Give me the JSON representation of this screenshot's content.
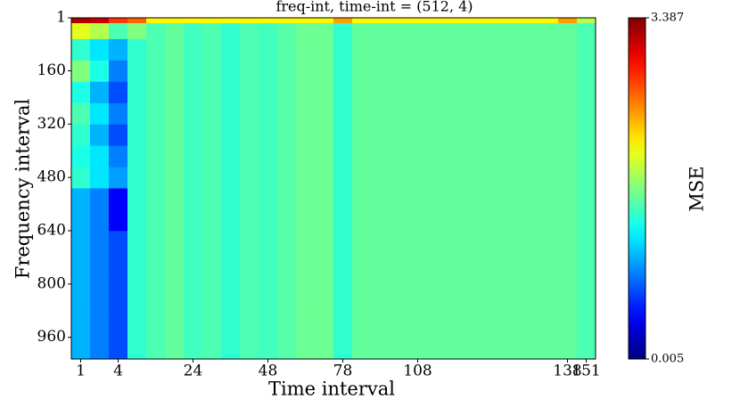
{
  "chart_data": {
    "type": "heatmap",
    "title": "freq-int, time-int = (512, 4)",
    "x_label": "Time interval",
    "y_label": "Frequency interval",
    "colorbar_label": "MSE",
    "colormap": "jet",
    "categories": [
      "1",
      null,
      "4",
      null,
      null,
      null,
      "24",
      null,
      null,
      null,
      "48",
      null,
      null,
      null,
      "78",
      null,
      null,
      null,
      "108",
      null,
      null,
      null,
      null,
      null,
      null,
      null,
      "138",
      "151"
    ],
    "y_bins": [
      1,
      17,
      65,
      129,
      193,
      257,
      321,
      385,
      449,
      513,
      641,
      769,
      897,
      1025
    ],
    "ylim": [
      1,
      1025
    ],
    "yticks": [
      1,
      160,
      320,
      480,
      640,
      800,
      960
    ],
    "y_reversed": true,
    "clim": [
      0.005,
      3.387
    ],
    "cticks": [
      0.005,
      3.387
    ],
    "z": [
      [
        3.22,
        3.15,
        2.78,
        2.64,
        2.14,
        2.14,
        2.14,
        2.14,
        2.14,
        2.14,
        2.14,
        2.14,
        2.14,
        2.14,
        2.44,
        2.14,
        2.14,
        2.14,
        2.14,
        2.14,
        2.14,
        2.14,
        2.14,
        2.14,
        2.14,
        2.14,
        2.44,
        1.86
      ],
      [
        2.03,
        1.87,
        1.53,
        1.7,
        1.53,
        1.6,
        1.49,
        1.53,
        1.43,
        1.53,
        1.49,
        1.56,
        1.63,
        1.63,
        1.43,
        1.6,
        1.6,
        1.6,
        1.6,
        1.6,
        1.6,
        1.6,
        1.6,
        1.6,
        1.6,
        1.6,
        1.6,
        1.53
      ],
      [
        1.43,
        1.19,
        1.02,
        1.43,
        1.53,
        1.6,
        1.49,
        1.53,
        1.43,
        1.53,
        1.49,
        1.56,
        1.63,
        1.63,
        1.43,
        1.6,
        1.6,
        1.6,
        1.6,
        1.6,
        1.6,
        1.6,
        1.6,
        1.6,
        1.6,
        1.6,
        1.6,
        1.53
      ],
      [
        1.7,
        1.36,
        0.85,
        1.43,
        1.53,
        1.6,
        1.49,
        1.53,
        1.43,
        1.53,
        1.49,
        1.56,
        1.63,
        1.63,
        1.43,
        1.6,
        1.6,
        1.6,
        1.6,
        1.6,
        1.6,
        1.6,
        1.6,
        1.6,
        1.6,
        1.6,
        1.6,
        1.53
      ],
      [
        1.36,
        1.02,
        0.68,
        1.43,
        1.53,
        1.6,
        1.49,
        1.53,
        1.43,
        1.53,
        1.49,
        1.56,
        1.63,
        1.63,
        1.43,
        1.6,
        1.6,
        1.6,
        1.6,
        1.6,
        1.6,
        1.6,
        1.6,
        1.6,
        1.6,
        1.6,
        1.6,
        1.53
      ],
      [
        1.53,
        1.19,
        0.85,
        1.43,
        1.53,
        1.6,
        1.49,
        1.53,
        1.43,
        1.53,
        1.49,
        1.56,
        1.63,
        1.63,
        1.43,
        1.6,
        1.6,
        1.6,
        1.6,
        1.6,
        1.6,
        1.6,
        1.6,
        1.6,
        1.6,
        1.6,
        1.6,
        1.53
      ],
      [
        1.43,
        1.02,
        0.68,
        1.43,
        1.53,
        1.6,
        1.49,
        1.53,
        1.43,
        1.53,
        1.49,
        1.56,
        1.63,
        1.63,
        1.43,
        1.6,
        1.6,
        1.6,
        1.6,
        1.6,
        1.6,
        1.6,
        1.6,
        1.6,
        1.6,
        1.6,
        1.6,
        1.53
      ],
      [
        1.36,
        1.19,
        0.85,
        1.43,
        1.53,
        1.6,
        1.49,
        1.53,
        1.43,
        1.53,
        1.49,
        1.56,
        1.63,
        1.63,
        1.43,
        1.6,
        1.6,
        1.6,
        1.6,
        1.6,
        1.6,
        1.6,
        1.6,
        1.6,
        1.6,
        1.6,
        1.6,
        1.53
      ],
      [
        1.43,
        1.19,
        0.95,
        1.43,
        1.53,
        1.6,
        1.49,
        1.53,
        1.43,
        1.53,
        1.49,
        1.56,
        1.63,
        1.63,
        1.43,
        1.6,
        1.6,
        1.6,
        1.6,
        1.6,
        1.6,
        1.6,
        1.6,
        1.6,
        1.6,
        1.6,
        1.6,
        1.53
      ],
      [
        1.02,
        0.85,
        0.41,
        1.43,
        1.53,
        1.6,
        1.49,
        1.53,
        1.43,
        1.53,
        1.49,
        1.56,
        1.63,
        1.63,
        1.43,
        1.6,
        1.6,
        1.6,
        1.6,
        1.6,
        1.6,
        1.6,
        1.6,
        1.6,
        1.6,
        1.6,
        1.6,
        1.53
      ],
      [
        1.02,
        0.85,
        0.68,
        1.43,
        1.53,
        1.6,
        1.49,
        1.53,
        1.43,
        1.53,
        1.49,
        1.56,
        1.63,
        1.63,
        1.43,
        1.6,
        1.6,
        1.6,
        1.6,
        1.6,
        1.6,
        1.6,
        1.6,
        1.6,
        1.6,
        1.6,
        1.6,
        1.53
      ],
      [
        1.02,
        0.85,
        0.68,
        1.43,
        1.53,
        1.6,
        1.49,
        1.53,
        1.43,
        1.53,
        1.49,
        1.56,
        1.63,
        1.63,
        1.43,
        1.6,
        1.6,
        1.6,
        1.6,
        1.6,
        1.6,
        1.6,
        1.6,
        1.6,
        1.6,
        1.6,
        1.6,
        1.53
      ],
      [
        1.02,
        0.85,
        0.68,
        1.43,
        1.53,
        1.6,
        1.49,
        1.53,
        1.43,
        1.53,
        1.49,
        1.56,
        1.63,
        1.63,
        1.43,
        1.6,
        1.6,
        1.6,
        1.6,
        1.6,
        1.6,
        1.6,
        1.6,
        1.6,
        1.6,
        1.6,
        1.6,
        1.53
      ]
    ]
  }
}
